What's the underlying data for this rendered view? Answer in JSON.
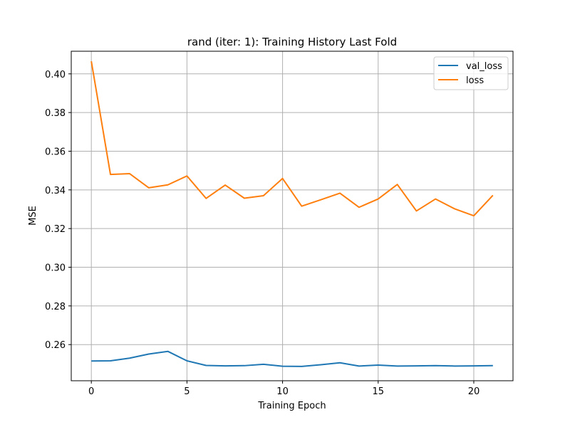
{
  "chart_data": {
    "type": "line",
    "title": "rand (iter: 1): Training History Last Fold",
    "xlabel": "Training Epoch",
    "ylabel": "MSE",
    "xlim": [
      -1.05,
      22.05
    ],
    "ylim": [
      0.2413,
      0.4117
    ],
    "xticks": [
      0,
      5,
      10,
      15,
      20
    ],
    "yticks": [
      0.26,
      0.28,
      0.3,
      0.32,
      0.34,
      0.36,
      0.38,
      0.4
    ],
    "ytick_labels": [
      "0.26",
      "0.28",
      "0.30",
      "0.32",
      "0.34",
      "0.36",
      "0.38",
      "0.40"
    ],
    "grid": true,
    "legend_position": "top-right",
    "x": [
      0,
      1,
      2,
      3,
      4,
      5,
      6,
      7,
      8,
      9,
      10,
      11,
      12,
      13,
      14,
      15,
      16,
      17,
      18,
      19,
      20,
      21
    ],
    "series": [
      {
        "name": "val_loss",
        "color": "#1f77b4",
        "values": [
          0.2515,
          0.2516,
          0.253,
          0.2551,
          0.2565,
          0.2516,
          0.2492,
          0.249,
          0.2491,
          0.2498,
          0.2488,
          0.2487,
          0.2496,
          0.2506,
          0.2489,
          0.2494,
          0.2489,
          0.249,
          0.2491,
          0.2489,
          0.249,
          0.2491
        ]
      },
      {
        "name": "loss",
        "color": "#ff7f0e",
        "values": [
          0.4065,
          0.348,
          0.3484,
          0.3411,
          0.3426,
          0.3472,
          0.3356,
          0.3425,
          0.3357,
          0.337,
          0.3459,
          0.3316,
          0.3349,
          0.3383,
          0.331,
          0.3353,
          0.3428,
          0.3291,
          0.3353,
          0.3302,
          0.3266,
          0.3372
        ]
      }
    ]
  }
}
